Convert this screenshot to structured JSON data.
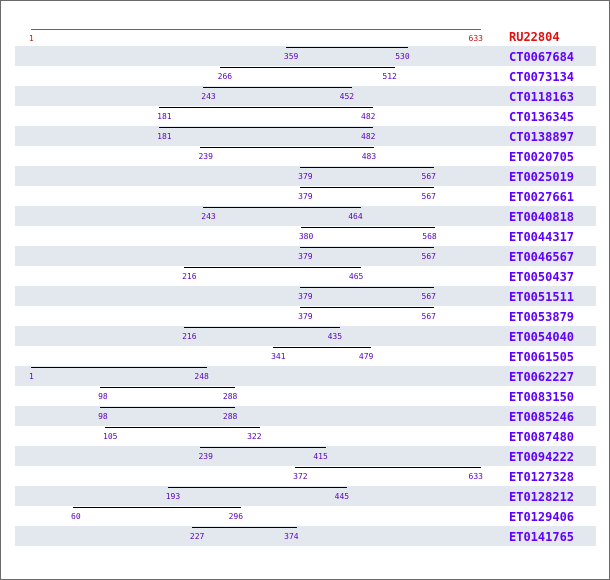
{
  "reference": {
    "id": "RU22804",
    "start": 1,
    "end": 633,
    "color": "#e03030"
  },
  "scale": {
    "min": 1,
    "max": 633
  },
  "colors": {
    "link": "#6000ff",
    "position_label": "#5a00c0",
    "reference": "#e01010",
    "row_shade": "#e3e8ee"
  },
  "alignments": [
    {
      "id": "CT0067684",
      "start": 359,
      "end": 530
    },
    {
      "id": "CT0073134",
      "start": 266,
      "end": 512
    },
    {
      "id": "CT0118163",
      "start": 243,
      "end": 452
    },
    {
      "id": "CT0136345",
      "start": 181,
      "end": 482
    },
    {
      "id": "CT0138897",
      "start": 181,
      "end": 482
    },
    {
      "id": "ET0020705",
      "start": 239,
      "end": 483
    },
    {
      "id": "ET0025019",
      "start": 379,
      "end": 567
    },
    {
      "id": "ET0027661",
      "start": 379,
      "end": 567
    },
    {
      "id": "ET0040818",
      "start": 243,
      "end": 464
    },
    {
      "id": "ET0044317",
      "start": 380,
      "end": 568
    },
    {
      "id": "ET0046567",
      "start": 379,
      "end": 567
    },
    {
      "id": "ET0050437",
      "start": 216,
      "end": 465
    },
    {
      "id": "ET0051511",
      "start": 379,
      "end": 567
    },
    {
      "id": "ET0053879",
      "start": 379,
      "end": 567
    },
    {
      "id": "ET0054040",
      "start": 216,
      "end": 435
    },
    {
      "id": "ET0061505",
      "start": 341,
      "end": 479
    },
    {
      "id": "ET0062227",
      "start": 1,
      "end": 248
    },
    {
      "id": "ET0083150",
      "start": 98,
      "end": 288
    },
    {
      "id": "ET0085246",
      "start": 98,
      "end": 288
    },
    {
      "id": "ET0087480",
      "start": 105,
      "end": 322
    },
    {
      "id": "ET0094222",
      "start": 239,
      "end": 415
    },
    {
      "id": "ET0127328",
      "start": 372,
      "end": 633
    },
    {
      "id": "ET0128212",
      "start": 193,
      "end": 445
    },
    {
      "id": "ET0129406",
      "start": 60,
      "end": 296
    },
    {
      "id": "ET0141765",
      "start": 227,
      "end": 374
    }
  ]
}
